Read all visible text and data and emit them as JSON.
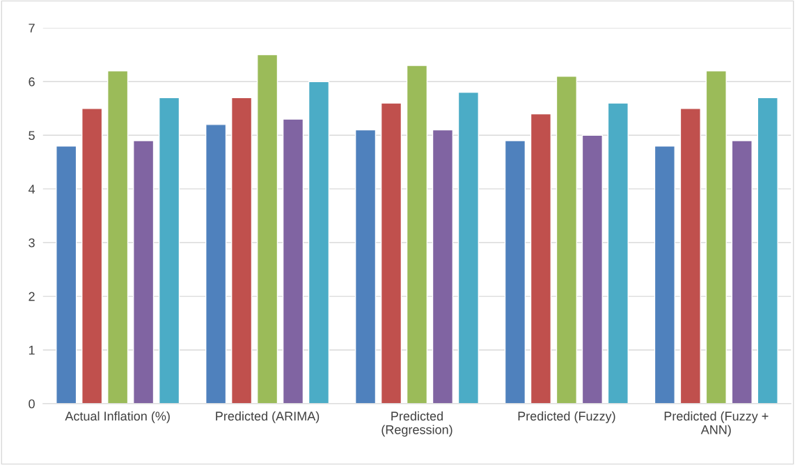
{
  "chart_data": {
    "type": "bar",
    "categories": [
      "Actual Inflation (%)",
      "Predicted (ARIMA)",
      "Predicted (Regression)",
      "Predicted (Fuzzy)",
      "Predicted (Fuzzy + ANN)"
    ],
    "series": [
      {
        "color": "#4f81bd",
        "values": [
          4.8,
          5.2,
          5.1,
          4.9,
          4.8
        ]
      },
      {
        "color": "#c0504d",
        "values": [
          5.5,
          5.7,
          5.6,
          5.4,
          5.5
        ]
      },
      {
        "color": "#9bbb59",
        "values": [
          6.2,
          6.5,
          6.3,
          6.1,
          6.2
        ]
      },
      {
        "color": "#8064a2",
        "values": [
          4.9,
          5.3,
          5.1,
          5.0,
          4.9
        ]
      },
      {
        "color": "#4bacc6",
        "values": [
          5.7,
          6.0,
          5.8,
          5.6,
          5.7
        ]
      }
    ],
    "ylim": [
      0,
      7
    ],
    "yticks": [
      0,
      1,
      2,
      3,
      4,
      5,
      6,
      7
    ],
    "grid": "y",
    "legend": false
  }
}
